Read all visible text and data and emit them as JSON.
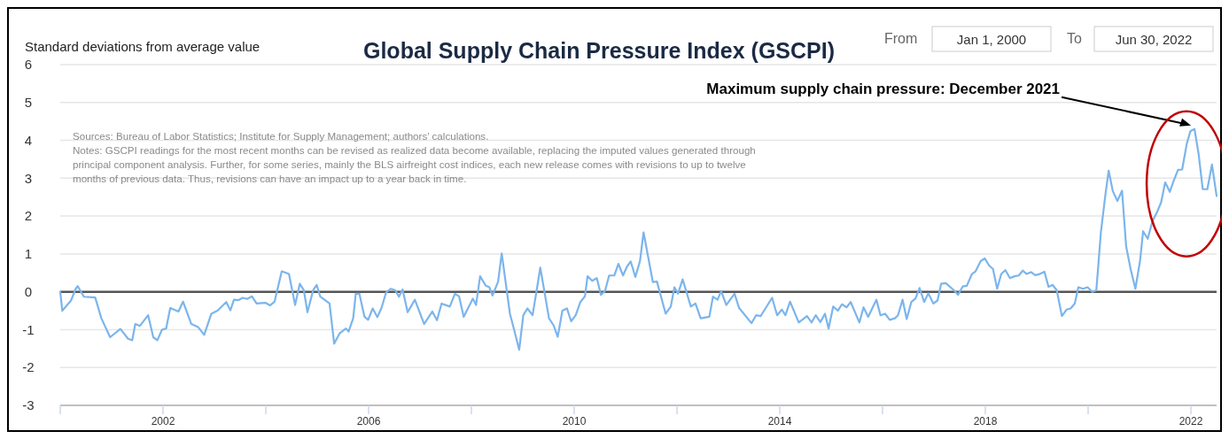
{
  "chart_data": {
    "type": "line",
    "title": "Global Supply Chain Pressure Index (GSCPI)",
    "ylabel": "Standard deviations from average value",
    "annotations": [
      "Maximum supply chain pressure: December 2021",
      "Sources: Bureau of Labor Statistics; Institute for Supply Management; authors’ calculations.",
      "Notes: GSCPI readings for the most recent months can be revised as realized data become available, replacing the imputed values generated through principal component analysis. Further, for some series, mainly the BLS airfreight cost indices, each new release comes with revisions to up to twelve months of previous data. Thus, revisions can have an impact up to a year back in time.",
      "From",
      "Jan 1, 2000",
      "To",
      "Jun 30, 2022"
    ],
    "series": [
      {
        "color": "#7cb5ec",
        "x": [
          2000.0,
          2000.04,
          2000.21,
          2000.3,
          2000.34,
          2000.46,
          2000.68,
          2000.8,
          2000.97,
          2001.17,
          2001.32,
          2001.4,
          2001.46,
          2001.55,
          2001.71,
          2001.81,
          2001.89,
          2001.98,
          2002.06,
          2002.14,
          2002.3,
          2002.39,
          2002.55,
          2002.68,
          2002.8,
          2002.94,
          2003.06,
          2003.23,
          2003.31,
          2003.38,
          2003.47,
          2003.55,
          2003.64,
          2003.73,
          2003.82,
          2003.99,
          2004.08,
          2004.17,
          2004.31,
          2004.45,
          2004.57,
          2004.66,
          2004.74,
          2004.81,
          2004.92,
          2004.99,
          2005.06,
          2005.24,
          2005.33,
          2005.44,
          2005.56,
          2005.61,
          2005.7,
          2005.75,
          2005.82,
          2005.92,
          2005.99,
          2006.08,
          2006.17,
          2006.25,
          2006.34,
          2006.43,
          2006.52,
          2006.59,
          2006.66,
          2006.76,
          2006.9,
          2007.08,
          2007.24,
          2007.33,
          2007.42,
          2007.58,
          2007.68,
          2007.76,
          2007.85,
          2008.03,
          2008.09,
          2008.17,
          2008.28,
          2008.35,
          2008.41,
          2008.52,
          2008.59,
          2008.75,
          2008.84,
          2008.93,
          2009.01,
          2009.09,
          2009.19,
          2009.27,
          2009.34,
          2009.51,
          2009.6,
          2009.68,
          2009.77,
          2009.86,
          2009.94,
          2010.03,
          2010.12,
          2010.21,
          2010.26,
          2010.35,
          2010.44,
          2010.52,
          2010.6,
          2010.68,
          2010.78,
          2010.86,
          2010.95,
          2011.03,
          2011.1,
          2011.19,
          2011.28,
          2011.35,
          2011.53,
          2011.61,
          2011.78,
          2011.88,
          2011.95,
          2012.02,
          2012.11,
          2012.27,
          2012.36,
          2012.46,
          2012.63,
          2012.7,
          2012.79,
          2012.86,
          2012.96,
          2013.12,
          2013.21,
          2013.45,
          2013.54,
          2013.63,
          2013.85,
          2013.95,
          2014.04,
          2014.11,
          2014.2,
          2014.37,
          2014.53,
          2014.62,
          2014.7,
          2014.79,
          2014.88,
          2014.95,
          2015.04,
          2015.13,
          2015.21,
          2015.3,
          2015.38,
          2015.55,
          2015.63,
          2015.72,
          2015.88,
          2015.96,
          2016.05,
          2016.14,
          2016.24,
          2016.3,
          2016.39,
          2016.47,
          2016.56,
          2016.64,
          2016.72,
          2016.81,
          2016.89,
          2016.99,
          2017.07,
          2017.14,
          2017.23,
          2017.39,
          2017.47,
          2017.56,
          2017.64,
          2017.74,
          2017.81,
          2017.91,
          2017.99,
          2018.07,
          2018.15,
          2018.23,
          2018.31,
          2018.39,
          2018.48,
          2018.57,
          2018.65,
          2018.73,
          2018.8,
          2018.89,
          2018.97,
          2019.06,
          2019.15,
          2019.23,
          2019.31,
          2019.39,
          2019.49,
          2019.58,
          2019.66,
          2019.74,
          2019.81,
          2019.9,
          2019.99,
          2020.08,
          2020.16,
          2020.25,
          2020.34,
          2020.4,
          2020.48,
          2020.57,
          2020.66,
          2020.74,
          2020.83,
          2020.92,
          2021.01,
          2021.07,
          2021.16,
          2021.25,
          2021.33,
          2021.42,
          2021.5,
          2021.59,
          2021.67,
          2021.75,
          2021.83,
          2021.92,
          2021.99,
          2022.07,
          2022.15,
          2022.23,
          2022.32,
          2022.41,
          2022.5
        ],
        "values": [
          0.0,
          -0.5,
          -0.23,
          0.08,
          0.15,
          -0.13,
          -0.15,
          -0.7,
          -1.2,
          -0.98,
          -1.24,
          -1.28,
          -0.85,
          -0.9,
          -0.62,
          -1.2,
          -1.28,
          -1.0,
          -0.97,
          -0.43,
          -0.52,
          -0.26,
          -0.85,
          -0.93,
          -1.14,
          -0.58,
          -0.5,
          -0.27,
          -0.49,
          -0.21,
          -0.22,
          -0.16,
          -0.19,
          -0.12,
          -0.31,
          -0.29,
          -0.36,
          -0.26,
          0.54,
          0.47,
          -0.35,
          0.21,
          0.04,
          -0.54,
          0.04,
          0.18,
          -0.13,
          -0.31,
          -1.37,
          -1.09,
          -0.97,
          -1.05,
          -0.7,
          -0.05,
          -0.05,
          -0.66,
          -0.74,
          -0.44,
          -0.67,
          -0.43,
          -0.02,
          0.08,
          0.04,
          -0.13,
          0.06,
          -0.54,
          -0.21,
          -0.85,
          -0.52,
          -0.75,
          -0.31,
          -0.39,
          -0.05,
          -0.12,
          -0.66,
          -0.18,
          -0.35,
          0.41,
          0.16,
          0.12,
          -0.1,
          0.27,
          1.01,
          -0.58,
          -1.05,
          -1.53,
          -0.62,
          -0.44,
          -0.62,
          0.04,
          0.64,
          -0.7,
          -0.89,
          -1.19,
          -0.5,
          -0.44,
          -0.78,
          -0.62,
          -0.27,
          -0.12,
          0.41,
          0.29,
          0.36,
          -0.08,
          0.02,
          0.43,
          0.43,
          0.74,
          0.43,
          0.67,
          0.8,
          0.39,
          0.81,
          1.57,
          0.26,
          0.27,
          -0.58,
          -0.39,
          0.12,
          -0.05,
          0.33,
          -0.39,
          -0.31,
          -0.7,
          -0.66,
          -0.13,
          -0.21,
          0.02,
          -0.35,
          -0.05,
          -0.43,
          -0.83,
          -0.62,
          -0.64,
          -0.16,
          -0.62,
          -0.47,
          -0.62,
          -0.26,
          -0.81,
          -0.64,
          -0.81,
          -0.62,
          -0.8,
          -0.58,
          -0.97,
          -0.39,
          -0.5,
          -0.33,
          -0.41,
          -0.27,
          -0.81,
          -0.41,
          -0.66,
          -0.21,
          -0.62,
          -0.58,
          -0.74,
          -0.7,
          -0.62,
          -0.21,
          -0.72,
          -0.27,
          -0.18,
          0.1,
          -0.27,
          -0.04,
          -0.31,
          -0.23,
          0.21,
          0.23,
          0.04,
          -0.08,
          0.14,
          0.16,
          0.47,
          0.54,
          0.81,
          0.88,
          0.7,
          0.6,
          0.08,
          0.47,
          0.57,
          0.36,
          0.41,
          0.43,
          0.56,
          0.47,
          0.52,
          0.44,
          0.47,
          0.53,
          0.13,
          0.18,
          0.04,
          -0.64,
          -0.47,
          -0.44,
          -0.31,
          0.12,
          0.08,
          0.12,
          0.0,
          0.04,
          1.59,
          2.6,
          3.2,
          2.66,
          2.4,
          2.67,
          1.2,
          0.58,
          0.08,
          0.81,
          1.6,
          1.4,
          1.86,
          2.07,
          2.36,
          2.89,
          2.64,
          2.95,
          3.22,
          3.23,
          3.91,
          4.24,
          4.3,
          3.64,
          2.71,
          2.71,
          3.36,
          2.53
        ]
      }
    ],
    "xlim": [
      2000,
      2022.5
    ],
    "xticks": [
      {
        "value": 2000,
        "label": null
      },
      2002,
      {
        "value": 2004,
        "label": null
      },
      2006,
      {
        "value": 2008,
        "label": null
      },
      2010,
      {
        "value": 2012,
        "label": null
      },
      2014,
      {
        "value": 2016,
        "label": null
      },
      2018,
      {
        "value": 2020,
        "label": null
      },
      2022
    ],
    "ylim": [
      -3,
      6
    ],
    "yticks": [
      -3,
      -2,
      -1,
      0,
      1,
      2,
      3,
      4,
      5,
      6
    ],
    "grid": "y",
    "marker": "none",
    "line_style": "solid",
    "ref_lines": [
      {
        "axis": "y",
        "value": 0,
        "color": "#555555"
      }
    ]
  }
}
